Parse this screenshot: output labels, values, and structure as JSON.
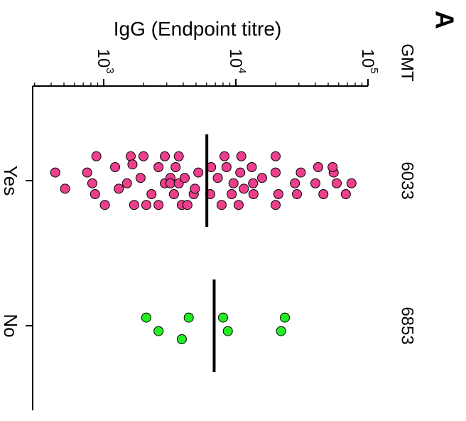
{
  "panel_label": "A",
  "chart_data": {
    "type": "scatter",
    "orientation": "rotated-90-clockwise",
    "value_axis": {
      "label": "IgG (Endpoint titre)",
      "scale": "log",
      "range": [
        300,
        100000
      ],
      "ticks": [
        {
          "value": 1000,
          "base": "10",
          "exp": "3"
        },
        {
          "value": 10000,
          "base": "10",
          "exp": "4"
        },
        {
          "value": 100000,
          "base": "10",
          "exp": "5"
        }
      ]
    },
    "gmt_header": "GMT",
    "groups": [
      {
        "category": "Yes",
        "gmt": "6033",
        "gmt_value": 6033,
        "color": "#ec3f8c",
        "points": [
          [
            430,
            -0.06
          ],
          [
            510,
            0.06
          ],
          [
            1020,
            0.18
          ],
          [
            880,
            -0.18
          ],
          [
            820,
            0.02
          ],
          [
            750,
            -0.06
          ],
          [
            860,
            0.1
          ],
          [
            1300,
            0.06
          ],
          [
            1220,
            -0.1
          ],
          [
            1600,
            -0.18
          ],
          [
            1700,
            0.18
          ],
          [
            1500,
            0.02
          ],
          [
            1650,
            -0.12
          ],
          [
            1900,
            -0.02
          ],
          [
            2100,
            0.18
          ],
          [
            2000,
            -0.18
          ],
          [
            2300,
            0.1
          ],
          [
            2600,
            -0.1
          ],
          [
            2900,
            0.02
          ],
          [
            2600,
            0.18
          ],
          [
            2900,
            -0.18
          ],
          [
            3200,
            -0.02
          ],
          [
            3700,
            -0.18
          ],
          [
            3900,
            0.18
          ],
          [
            3400,
            0.1
          ],
          [
            3500,
            -0.1
          ],
          [
            3200,
            0.02
          ],
          [
            3700,
            0.02
          ],
          [
            4300,
            0.18
          ],
          [
            4100,
            -0.02
          ],
          [
            4800,
            0.1
          ],
          [
            5200,
            -0.06
          ],
          [
            4900,
            0.06
          ],
          [
            6500,
            -0.1
          ],
          [
            6400,
            0.1
          ],
          [
            7300,
            -0.02
          ],
          [
            7800,
            0.18
          ],
          [
            8200,
            -0.18
          ],
          [
            9300,
            0.1
          ],
          [
            8500,
            -0.1
          ],
          [
            9600,
            0.02
          ],
          [
            10500,
            0.18
          ],
          [
            11000,
            -0.18
          ],
          [
            10800,
            -0.06
          ],
          [
            11500,
            0.06
          ],
          [
            13600,
            0.1
          ],
          [
            13200,
            -0.1
          ],
          [
            13500,
            0.02
          ],
          [
            15800,
            -0.02
          ],
          [
            20000,
            0.18
          ],
          [
            20000,
            -0.06
          ],
          [
            21000,
            0.1
          ],
          [
            20000,
            -0.18
          ],
          [
            28000,
            0.02
          ],
          [
            29000,
            0.1
          ],
          [
            31000,
            -0.06
          ],
          [
            40000,
            0.02
          ],
          [
            42000,
            -0.1
          ],
          [
            46000,
            0.1
          ],
          [
            55000,
            -0.06
          ],
          [
            58000,
            0.02
          ],
          [
            68000,
            0.1
          ],
          [
            75000,
            0.02
          ],
          [
            54000,
            -0.1
          ]
        ]
      },
      {
        "category": "No",
        "gmt": "6853",
        "gmt_value": 6853,
        "color": "#22ee22",
        "points": [
          [
            2100,
            -0.06
          ],
          [
            2600,
            0.04
          ],
          [
            3900,
            0.1
          ],
          [
            4400,
            -0.06
          ],
          [
            8000,
            -0.06
          ],
          [
            8700,
            0.04
          ],
          [
            22000,
            0.04
          ],
          [
            23500,
            -0.06
          ]
        ]
      }
    ]
  }
}
